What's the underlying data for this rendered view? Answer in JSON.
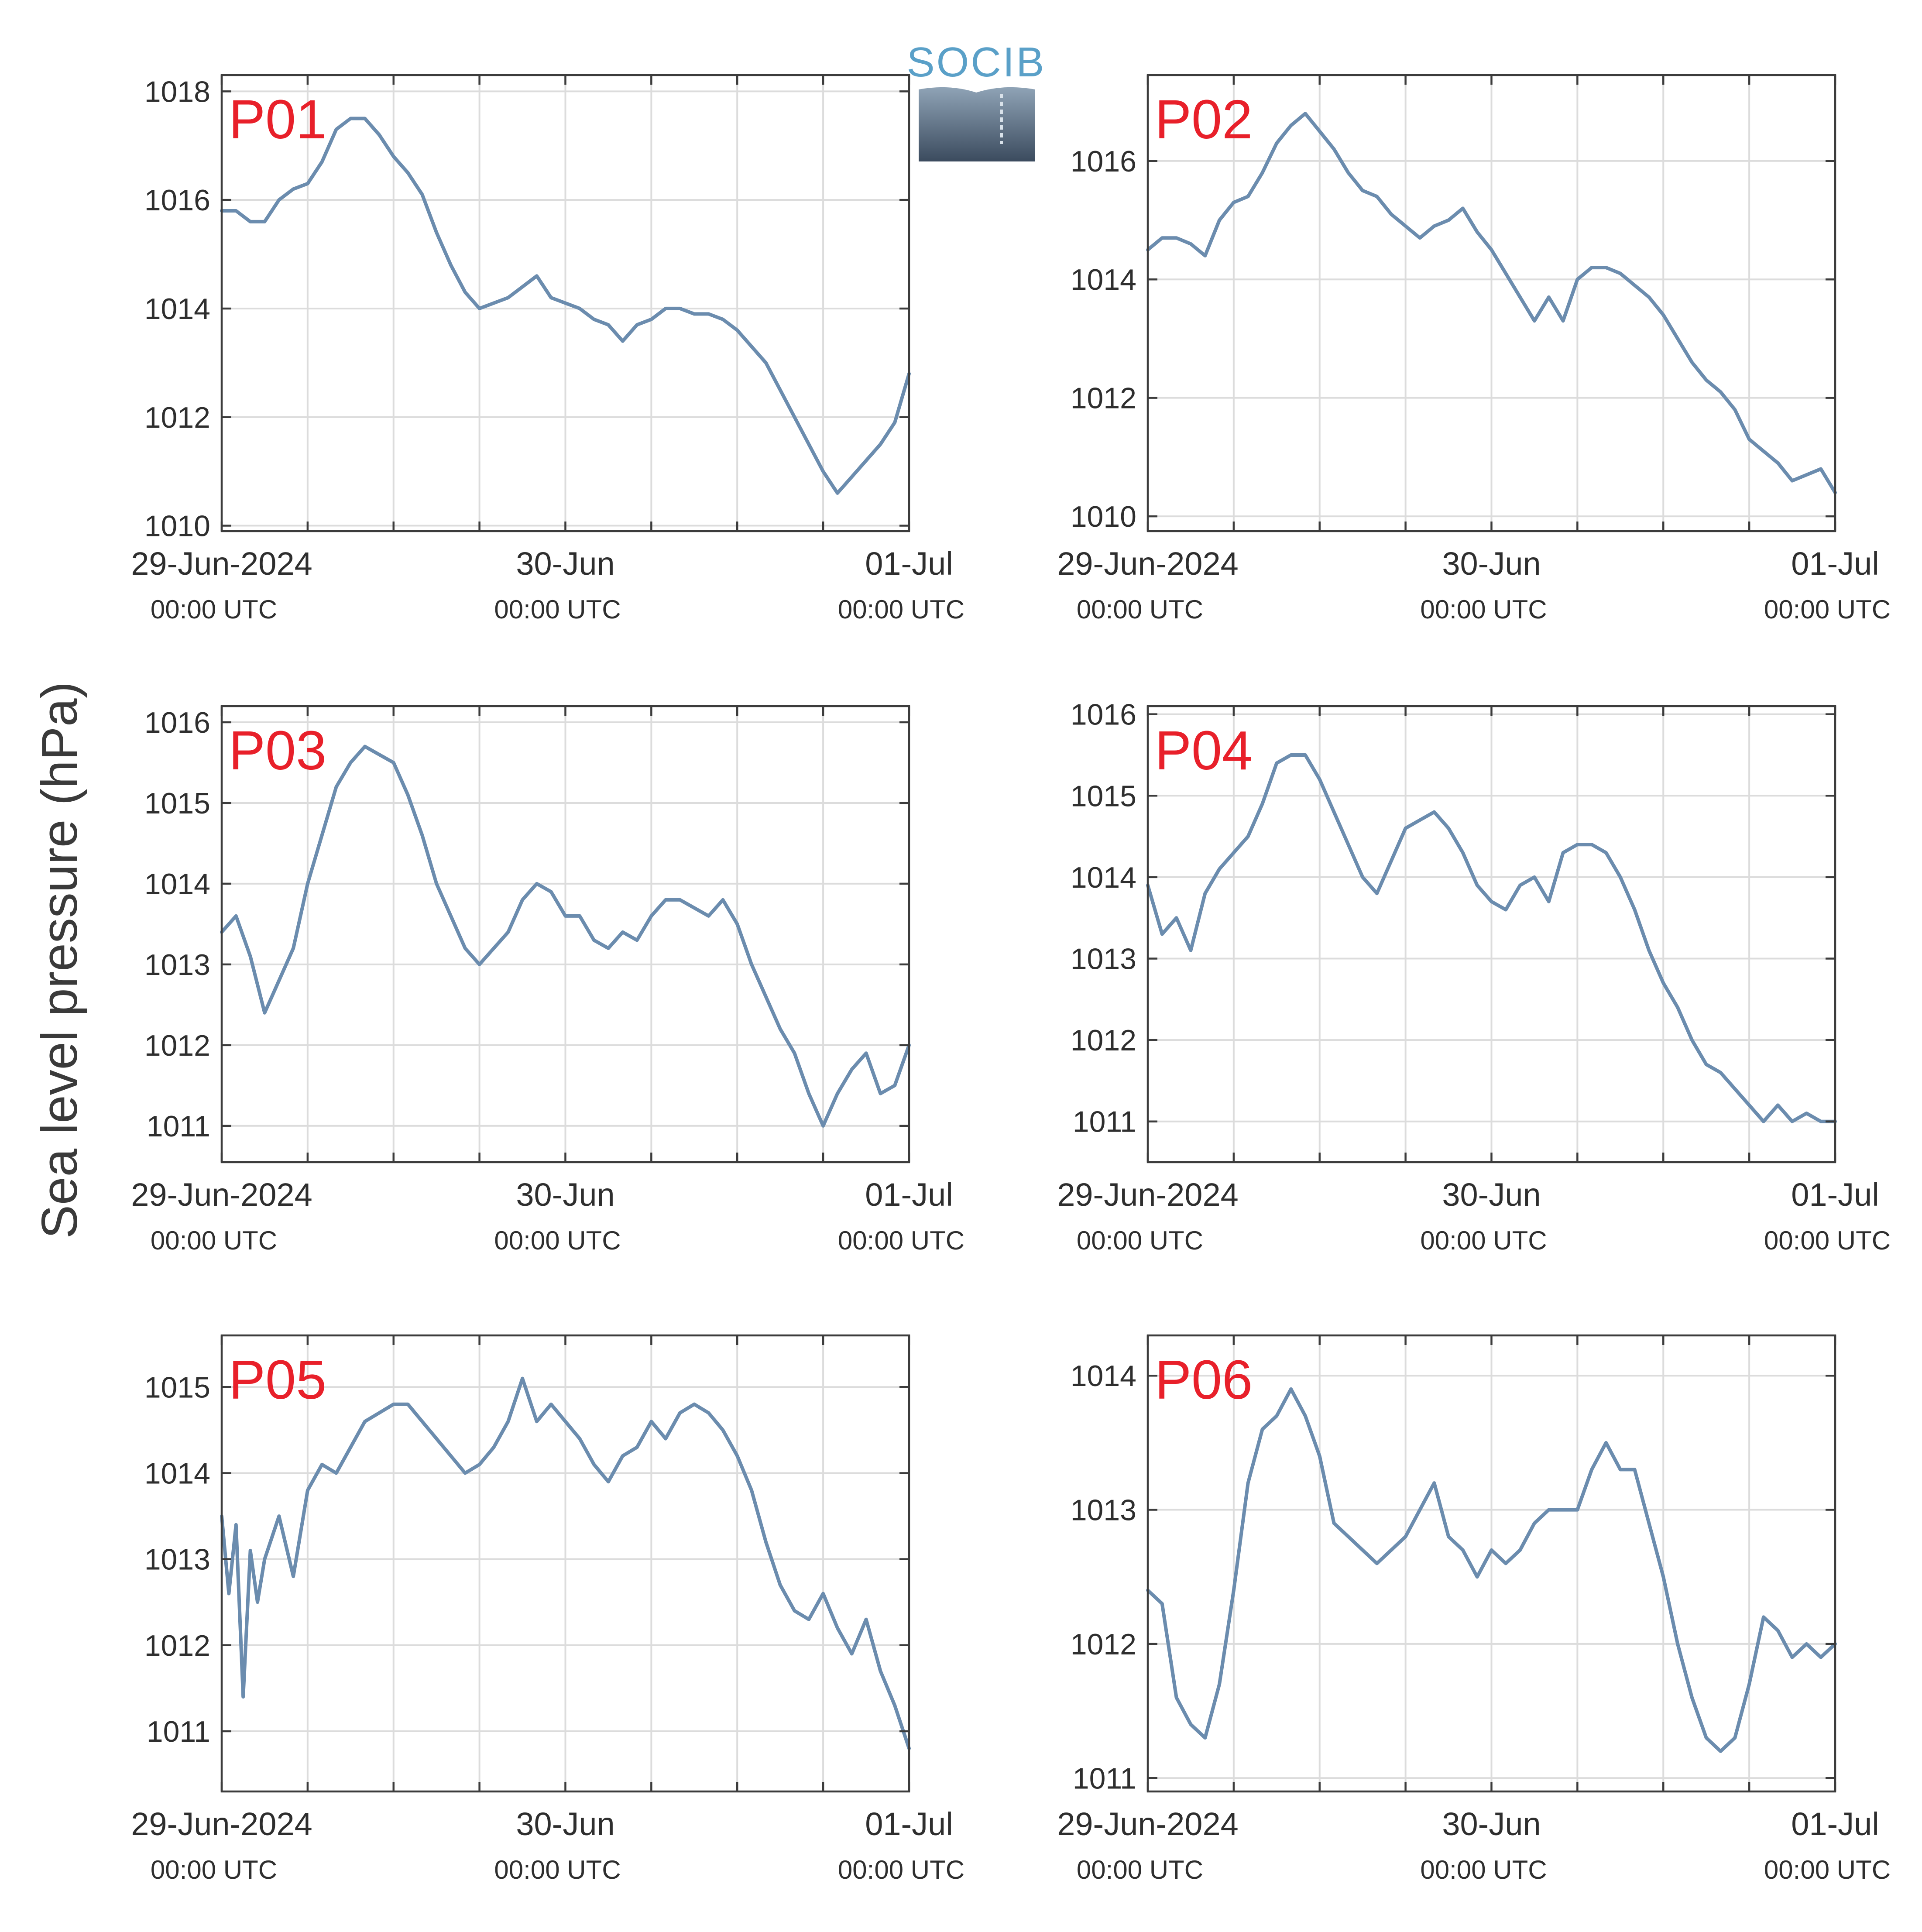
{
  "ylabel": "Sea level pressure (hPa)",
  "logo": {
    "text": "SOCIB",
    "colors": {
      "top": "#5aa0c8",
      "gradient_top": "#8fa3b6",
      "gradient_bottom": "#3b4b5e"
    }
  },
  "colors": {
    "series": "#6b8cae",
    "panel_label": "#e8202a",
    "grid": "#dcdcdc",
    "axis": "#3c3c3c"
  },
  "x_axis": {
    "unit": "hours since 29-Jun-2024 00:00 UTC",
    "range": [
      0,
      48
    ],
    "ticks": [
      0,
      6,
      12,
      18,
      24,
      30,
      36,
      42,
      48
    ],
    "labels": [
      {
        "at": 0,
        "main": "29-Jun-2024",
        "sub": "00:00 UTC"
      },
      {
        "at": 24,
        "main": "30-Jun",
        "sub": "00:00 UTC"
      },
      {
        "at": 48,
        "main": "01-Jul",
        "sub": "00:00 UTC"
      }
    ]
  },
  "chart_data": [
    {
      "type": "line",
      "label": "P01",
      "ylim": [
        1009.9,
        1018.3
      ],
      "yticks": [
        1010,
        1012,
        1014,
        1016,
        1018
      ],
      "x": [
        0,
        1,
        2,
        3,
        4,
        5,
        6,
        7,
        8,
        9,
        10,
        11,
        12,
        13,
        14,
        15,
        16,
        17,
        18,
        19,
        20,
        21,
        22,
        23,
        24,
        25,
        26,
        27,
        28,
        29,
        30,
        31,
        32,
        33,
        34,
        35,
        36,
        37,
        38,
        39,
        40,
        41,
        42,
        43,
        44,
        45,
        46,
        47,
        48
      ],
      "y": [
        1015.8,
        1015.8,
        1015.6,
        1015.6,
        1016.0,
        1016.2,
        1016.3,
        1016.7,
        1017.3,
        1017.5,
        1017.5,
        1017.2,
        1016.8,
        1016.5,
        1016.1,
        1015.4,
        1014.8,
        1014.3,
        1014.0,
        1014.1,
        1014.2,
        1014.4,
        1014.6,
        1014.2,
        1014.1,
        1014.0,
        1013.8,
        1013.7,
        1013.4,
        1013.7,
        1013.8,
        1014.0,
        1014.0,
        1013.9,
        1013.9,
        1013.8,
        1013.6,
        1013.3,
        1013.0,
        1012.5,
        1012.0,
        1011.5,
        1011.0,
        1010.6,
        1010.9,
        1011.2,
        1011.5,
        1011.9,
        1012.8
      ]
    },
    {
      "type": "line",
      "label": "P02",
      "ylim": [
        1009.75,
        1017.45
      ],
      "yticks": [
        1010,
        1012,
        1014,
        1016
      ],
      "x": [
        0,
        1,
        2,
        3,
        4,
        5,
        6,
        7,
        8,
        9,
        10,
        11,
        12,
        13,
        14,
        15,
        16,
        17,
        18,
        19,
        20,
        21,
        22,
        23,
        24,
        25,
        26,
        27,
        28,
        29,
        30,
        31,
        32,
        33,
        34,
        35,
        36,
        37,
        38,
        39,
        40,
        41,
        42,
        43,
        44,
        45,
        46,
        47,
        48
      ],
      "y": [
        1014.5,
        1014.7,
        1014.7,
        1014.6,
        1014.4,
        1015.0,
        1015.3,
        1015.4,
        1015.8,
        1016.3,
        1016.6,
        1016.8,
        1016.5,
        1016.2,
        1015.8,
        1015.5,
        1015.4,
        1015.1,
        1014.9,
        1014.7,
        1014.9,
        1015.0,
        1015.2,
        1014.8,
        1014.5,
        1014.1,
        1013.7,
        1013.3,
        1013.7,
        1013.3,
        1014.0,
        1014.2,
        1014.2,
        1014.1,
        1013.9,
        1013.7,
        1013.4,
        1013.0,
        1012.6,
        1012.3,
        1012.1,
        1011.8,
        1011.3,
        1011.1,
        1010.9,
        1010.6,
        1010.7,
        1010.8,
        1010.4
      ]
    },
    {
      "type": "line",
      "label": "P03",
      "ylim": [
        1010.55,
        1016.2
      ],
      "yticks": [
        1011,
        1012,
        1013,
        1014,
        1015,
        1016
      ],
      "x": [
        0,
        1,
        2,
        3,
        4,
        5,
        6,
        7,
        8,
        9,
        10,
        11,
        12,
        13,
        14,
        15,
        16,
        17,
        18,
        19,
        20,
        21,
        22,
        23,
        24,
        25,
        26,
        27,
        28,
        29,
        30,
        31,
        32,
        33,
        34,
        35,
        36,
        37,
        38,
        39,
        40,
        41,
        42,
        43,
        44,
        45,
        46,
        47,
        48
      ],
      "y": [
        1013.4,
        1013.6,
        1013.1,
        1012.4,
        1012.8,
        1013.2,
        1014.0,
        1014.6,
        1015.2,
        1015.5,
        1015.7,
        1015.6,
        1015.5,
        1015.1,
        1014.6,
        1014.0,
        1013.6,
        1013.2,
        1013.0,
        1013.2,
        1013.4,
        1013.8,
        1014.0,
        1013.9,
        1013.6,
        1013.6,
        1013.3,
        1013.2,
        1013.4,
        1013.3,
        1013.6,
        1013.8,
        1013.8,
        1013.7,
        1013.6,
        1013.8,
        1013.5,
        1013.0,
        1012.6,
        1012.2,
        1011.9,
        1011.4,
        1011.0,
        1011.4,
        1011.7,
        1011.9,
        1011.4,
        1011.5,
        1012.0
      ]
    },
    {
      "type": "line",
      "label": "P04",
      "ylim": [
        1010.5,
        1016.1
      ],
      "yticks": [
        1011,
        1012,
        1013,
        1014,
        1015,
        1016
      ],
      "x": [
        0,
        1,
        2,
        3,
        4,
        5,
        6,
        7,
        8,
        9,
        10,
        11,
        12,
        13,
        14,
        15,
        16,
        17,
        18,
        19,
        20,
        21,
        22,
        23,
        24,
        25,
        26,
        27,
        28,
        29,
        30,
        31,
        32,
        33,
        34,
        35,
        36,
        37,
        38,
        39,
        40,
        41,
        42,
        43,
        44,
        45,
        46,
        47,
        48
      ],
      "y": [
        1013.9,
        1013.3,
        1013.5,
        1013.1,
        1013.8,
        1014.1,
        1014.3,
        1014.5,
        1014.9,
        1015.4,
        1015.5,
        1015.5,
        1015.2,
        1014.8,
        1014.4,
        1014.0,
        1013.8,
        1014.2,
        1014.6,
        1014.7,
        1014.8,
        1014.6,
        1014.3,
        1013.9,
        1013.7,
        1013.6,
        1013.9,
        1014.0,
        1013.7,
        1014.3,
        1014.4,
        1014.4,
        1014.3,
        1014.0,
        1013.6,
        1013.1,
        1012.7,
        1012.4,
        1012.0,
        1011.7,
        1011.6,
        1011.4,
        1011.2,
        1011.0,
        1011.2,
        1011.0,
        1011.1,
        1011.0,
        1011.0
      ]
    },
    {
      "type": "line",
      "label": "P05",
      "ylim": [
        1010.3,
        1015.6
      ],
      "yticks": [
        1011,
        1012,
        1013,
        1014,
        1015
      ],
      "x": [
        0,
        0.5,
        1,
        1.5,
        2,
        2.5,
        3,
        4,
        5,
        6,
        7,
        8,
        9,
        10,
        11,
        12,
        13,
        14,
        15,
        16,
        17,
        18,
        19,
        20,
        21,
        22,
        23,
        24,
        25,
        26,
        27,
        28,
        29,
        30,
        31,
        32,
        33,
        34,
        35,
        36,
        37,
        38,
        39,
        40,
        41,
        42,
        43,
        44,
        45,
        46,
        47,
        48
      ],
      "y": [
        1013.5,
        1012.6,
        1013.4,
        1011.4,
        1013.1,
        1012.5,
        1013.0,
        1013.5,
        1012.8,
        1013.8,
        1014.1,
        1014.0,
        1014.3,
        1014.6,
        1014.7,
        1014.8,
        1014.8,
        1014.6,
        1014.4,
        1014.2,
        1014.0,
        1014.1,
        1014.3,
        1014.6,
        1015.1,
        1014.6,
        1014.8,
        1014.6,
        1014.4,
        1014.1,
        1013.9,
        1014.2,
        1014.3,
        1014.6,
        1014.4,
        1014.7,
        1014.8,
        1014.7,
        1014.5,
        1014.2,
        1013.8,
        1013.2,
        1012.7,
        1012.4,
        1012.3,
        1012.6,
        1012.2,
        1011.9,
        1012.3,
        1011.7,
        1011.3,
        1010.8
      ]
    },
    {
      "type": "line",
      "label": "P06",
      "ylim": [
        1010.9,
        1014.3
      ],
      "yticks": [
        1011,
        1012,
        1013,
        1014
      ],
      "x": [
        0,
        1,
        2,
        3,
        4,
        5,
        6,
        7,
        8,
        9,
        10,
        11,
        12,
        13,
        14,
        15,
        16,
        17,
        18,
        19,
        20,
        21,
        22,
        23,
        24,
        25,
        26,
        27,
        28,
        29,
        30,
        31,
        32,
        33,
        34,
        35,
        36,
        37,
        38,
        39,
        40,
        41,
        42,
        43,
        44,
        45,
        46,
        47,
        48
      ],
      "y": [
        1012.4,
        1012.3,
        1011.6,
        1011.4,
        1011.3,
        1011.7,
        1012.4,
        1013.2,
        1013.6,
        1013.7,
        1013.9,
        1013.7,
        1013.4,
        1012.9,
        1012.8,
        1012.7,
        1012.6,
        1012.7,
        1012.8,
        1013.0,
        1013.2,
        1012.8,
        1012.7,
        1012.5,
        1012.7,
        1012.6,
        1012.7,
        1012.9,
        1013.0,
        1013.0,
        1013.0,
        1013.3,
        1013.5,
        1013.3,
        1013.3,
        1012.9,
        1012.5,
        1012.0,
        1011.6,
        1011.3,
        1011.2,
        1011.3,
        1011.7,
        1012.2,
        1012.1,
        1011.9,
        1012.0,
        1011.9,
        1012.0
      ]
    }
  ]
}
